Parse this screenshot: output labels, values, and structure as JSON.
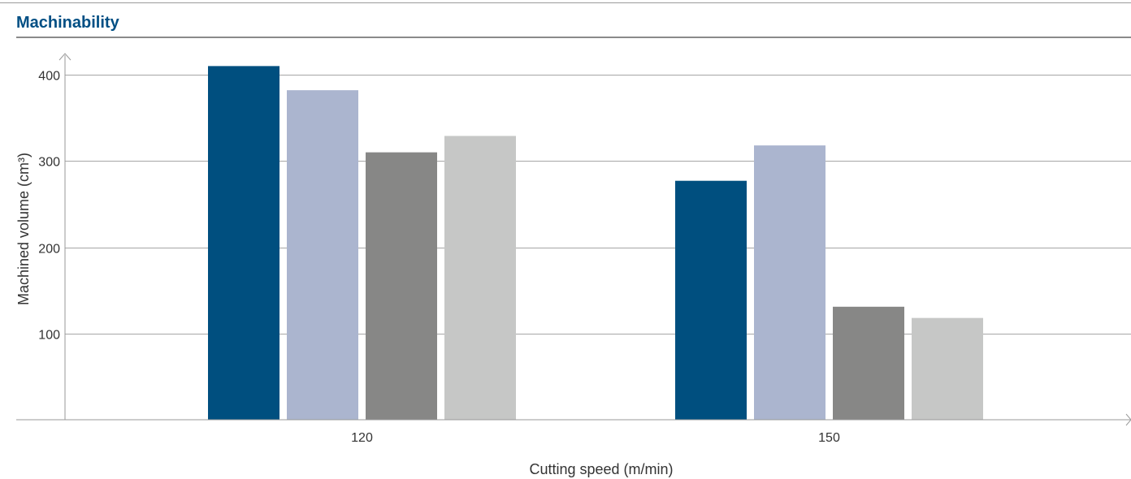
{
  "title": "Machinability",
  "colors": {
    "title": "#004f84",
    "rules": "#8a8a8a"
  },
  "chart_data": {
    "type": "bar",
    "title": "Machinability",
    "xlabel": "Cutting speed (m/min)",
    "ylabel": "Machined volume (cm³)",
    "categories": [
      "120",
      "150"
    ],
    "yticks": [
      100,
      200,
      300,
      400
    ],
    "ylim": [
      0,
      425
    ],
    "grid": true,
    "legend": "none",
    "series": [
      {
        "values": [
          410,
          277
        ],
        "color": "#004f7f"
      },
      {
        "values": [
          382,
          318
        ],
        "color": "#abb5cf"
      },
      {
        "values": [
          310,
          131
        ],
        "color": "#878786"
      },
      {
        "values": [
          329,
          118
        ],
        "color": "#c6c7c6"
      }
    ]
  }
}
